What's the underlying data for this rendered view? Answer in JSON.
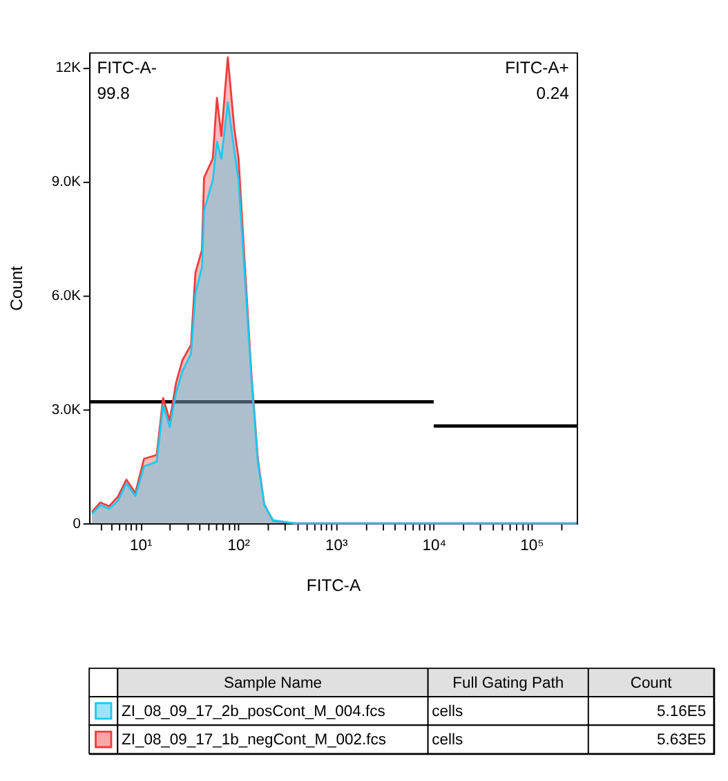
{
  "chart_data": {
    "type": "area",
    "xlabel": "FITC-A",
    "ylabel": "Count",
    "log": "x",
    "x": [
      3.2,
      3.9,
      4.8,
      5.9,
      7.2,
      8.9,
      10.9,
      14.7,
      17.1,
      20,
      23.2,
      27,
      33,
      36.6,
      42.7,
      44.8,
      55,
      60.7,
      67.3,
      78.4,
      91.3,
      101,
      117,
      137,
      159,
      185,
      228,
      373,
      290000
    ],
    "series": [
      {
        "name": "ZI_08_09_17_2b_posCont_M_004.fcs",
        "color": "#1ec8f0",
        "values": [
          250,
          480,
          380,
          590,
          1050,
          720,
          1500,
          1620,
          3100,
          2530,
          3450,
          4010,
          4470,
          6060,
          6750,
          8230,
          9030,
          10050,
          9600,
          11080,
          9820,
          9030,
          6520,
          3790,
          1620,
          480,
          80,
          0,
          0
        ]
      },
      {
        "name": "ZI_08_09_17_1b_negCont_M_002.fcs",
        "color": "#f03c3c",
        "values": [
          300,
          550,
          450,
          700,
          1150,
          800,
          1700,
          1800,
          3300,
          2700,
          3700,
          4300,
          4700,
          6600,
          7200,
          9100,
          9600,
          11200,
          10200,
          12270,
          10400,
          9600,
          6800,
          3900,
          1700,
          500,
          60,
          0,
          0
        ]
      },
      {
        "type": "line",
        "color": "#000000",
        "x": [
          3,
          10000
        ],
        "values": [
          3200,
          3200
        ]
      },
      {
        "type": "line",
        "color": "#000000",
        "x": [
          10000,
          290000
        ],
        "values": [
          2560,
          2560
        ]
      }
    ],
    "xlim": [
      3,
      290000
    ],
    "xticks": [
      {
        "value": 4,
        "label": null
      },
      {
        "value": 5,
        "label": null
      },
      {
        "value": 6,
        "label": null
      },
      {
        "value": 7,
        "label": null
      },
      {
        "value": 8,
        "label": null
      },
      {
        "value": 9,
        "label": null
      },
      {
        "value": 10,
        "label": "10¹"
      },
      {
        "value": 20,
        "label": null
      },
      {
        "value": 30,
        "label": null
      },
      {
        "value": 40,
        "label": null
      },
      {
        "value": 50,
        "label": null
      },
      {
        "value": 60,
        "label": null
      },
      {
        "value": 70,
        "label": null
      },
      {
        "value": 80,
        "label": null
      },
      {
        "value": 90,
        "label": null
      },
      {
        "value": 100,
        "label": "10²"
      },
      {
        "value": 200,
        "label": null
      },
      {
        "value": 300,
        "label": null
      },
      {
        "value": 400,
        "label": null
      },
      {
        "value": 500,
        "label": null
      },
      {
        "value": 600,
        "label": null
      },
      {
        "value": 700,
        "label": null
      },
      {
        "value": 800,
        "label": null
      },
      {
        "value": 900,
        "label": null
      },
      {
        "value": 1000,
        "label": "10³"
      },
      {
        "value": 2000,
        "label": null
      },
      {
        "value": 3000,
        "label": null
      },
      {
        "value": 4000,
        "label": null
      },
      {
        "value": 5000,
        "label": null
      },
      {
        "value": 6000,
        "label": null
      },
      {
        "value": 7000,
        "label": null
      },
      {
        "value": 8000,
        "label": null
      },
      {
        "value": 9000,
        "label": null
      },
      {
        "value": 10000,
        "label": "10⁴"
      },
      {
        "value": 20000,
        "label": null
      },
      {
        "value": 30000,
        "label": null
      },
      {
        "value": 40000,
        "label": null
      },
      {
        "value": 50000,
        "label": null
      },
      {
        "value": 60000,
        "label": null
      },
      {
        "value": 70000,
        "label": null
      },
      {
        "value": 80000,
        "label": null
      },
      {
        "value": 90000,
        "label": null
      },
      {
        "value": 100000,
        "label": "10⁵"
      },
      {
        "value": 200000,
        "label": null
      }
    ],
    "ylim": [
      0,
      12400
    ],
    "yticks": [
      0,
      {
        "value": 3000,
        "label": "3.0K"
      },
      {
        "value": 6000,
        "label": "6.0K"
      },
      {
        "value": 9000,
        "label": "9.0K"
      },
      {
        "value": 12000,
        "label": "12K"
      }
    ],
    "grid": false,
    "legend": "bottom",
    "annotations": [
      "FITC-A-",
      "99.8",
      "FITC-A+",
      "0.24",
      "Sample Name",
      "Full Gating Path",
      "Count",
      "cells",
      "5.16E5",
      "cells",
      "5.63E5"
    ]
  }
}
